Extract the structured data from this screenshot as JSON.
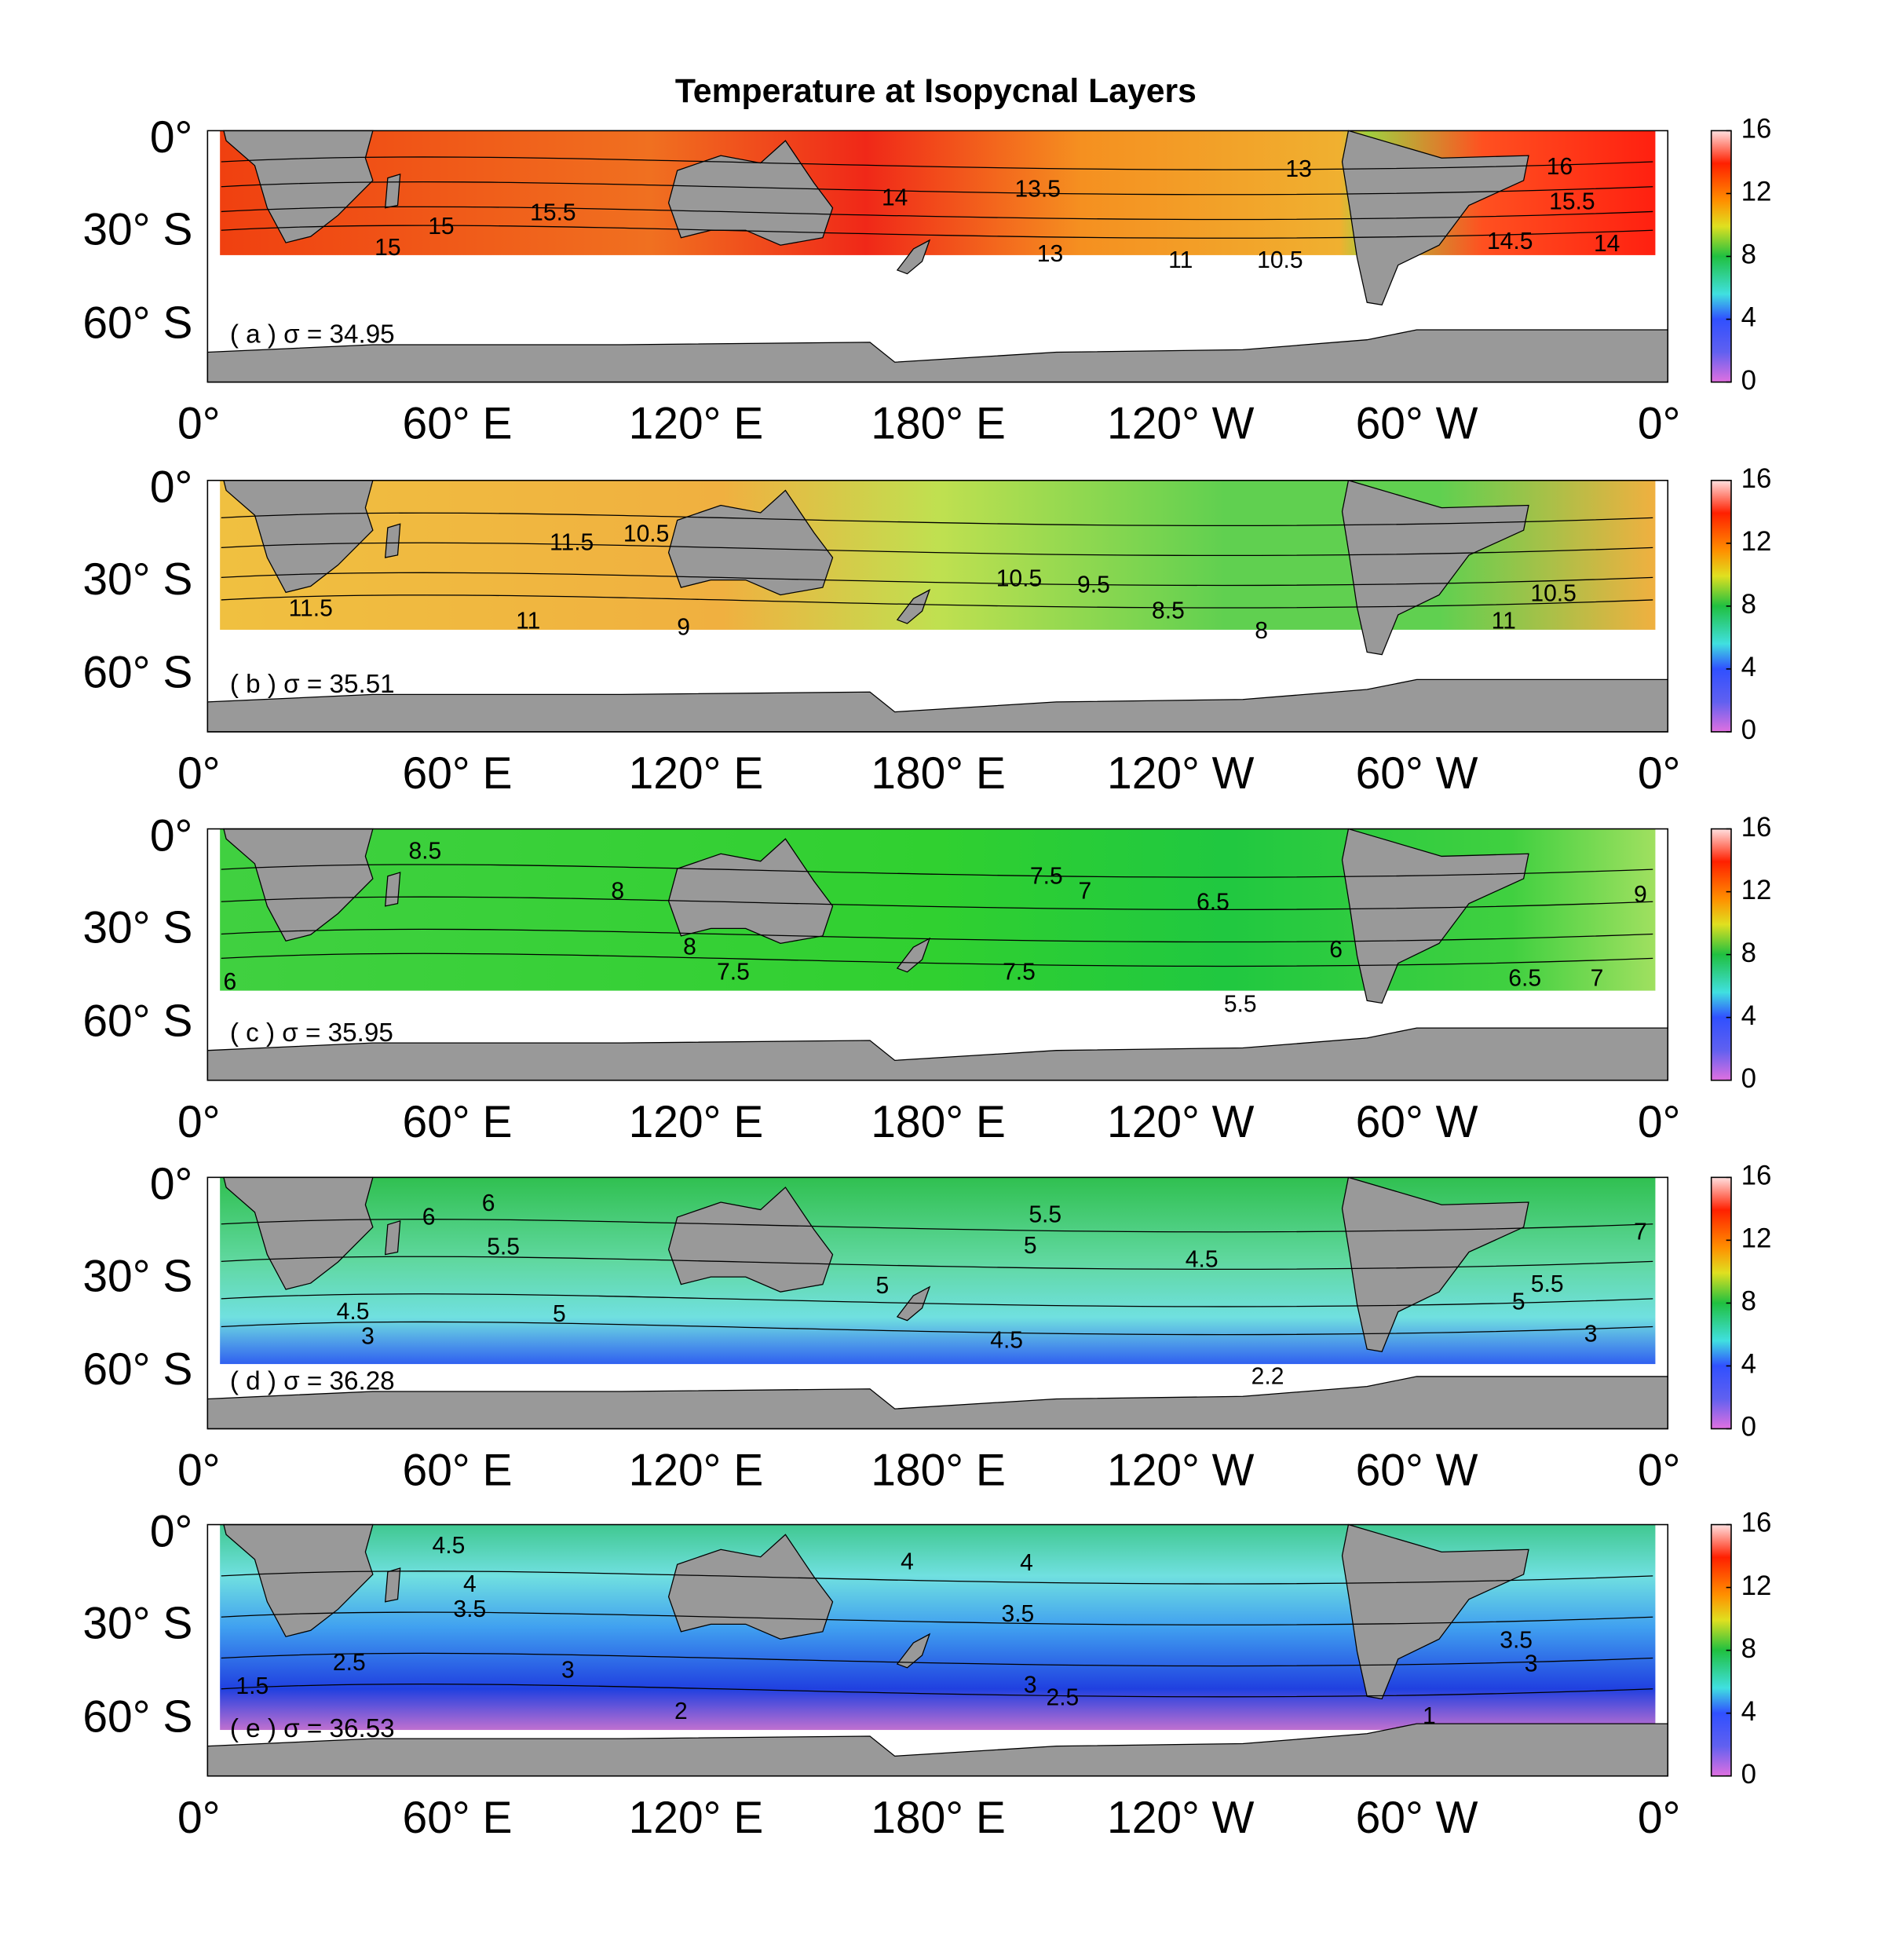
{
  "title": "Temperature at Isopycnal Layers",
  "x_ticks": [
    "0°",
    "60° E",
    "120° E",
    "180° E",
    "120° W",
    "60° W",
    "0°"
  ],
  "y_ticks": [
    "0°",
    "30° S",
    "60° S"
  ],
  "colorbar": {
    "clim": [
      0,
      16
    ],
    "ticks": [
      0,
      4,
      8,
      12,
      16
    ]
  },
  "panels": [
    {
      "label": "( a ) σ = 34.95",
      "contour_labels": [
        "16",
        "15.5",
        "14",
        "14.5",
        "13.5",
        "13",
        "15",
        "15",
        "15.5",
        "14",
        "13",
        "10.5",
        "11"
      ]
    },
    {
      "label": "( b ) σ = 35.51",
      "contour_labels": [
        "10.5",
        "11",
        "8",
        "8.5",
        "10.5",
        "11.5",
        "11",
        "9",
        "11.5",
        "10.5",
        "9.5"
      ]
    },
    {
      "label": "( c ) σ = 35.95",
      "contour_labels": [
        "8.5",
        "8",
        "7.5",
        "7",
        "6.5",
        "6",
        "9",
        "6.5",
        "7",
        "5.5",
        "6",
        "8",
        "7.5",
        "7.5"
      ]
    },
    {
      "label": "( d ) σ = 36.28",
      "contour_labels": [
        "6",
        "6",
        "5.5",
        "5.5",
        "5",
        "4.5",
        "7",
        "5.5",
        "5",
        "3",
        "4.5",
        "3",
        "5",
        "2.2",
        "5",
        "4.5"
      ]
    },
    {
      "label": "( e ) σ = 36.53",
      "contour_labels": [
        "4.5",
        "4",
        "3.5",
        "4",
        "4",
        "3.5",
        "3",
        "2",
        "2.5",
        "3",
        "3.5",
        "3",
        "1",
        "1.5",
        "2.5"
      ]
    }
  ]
}
